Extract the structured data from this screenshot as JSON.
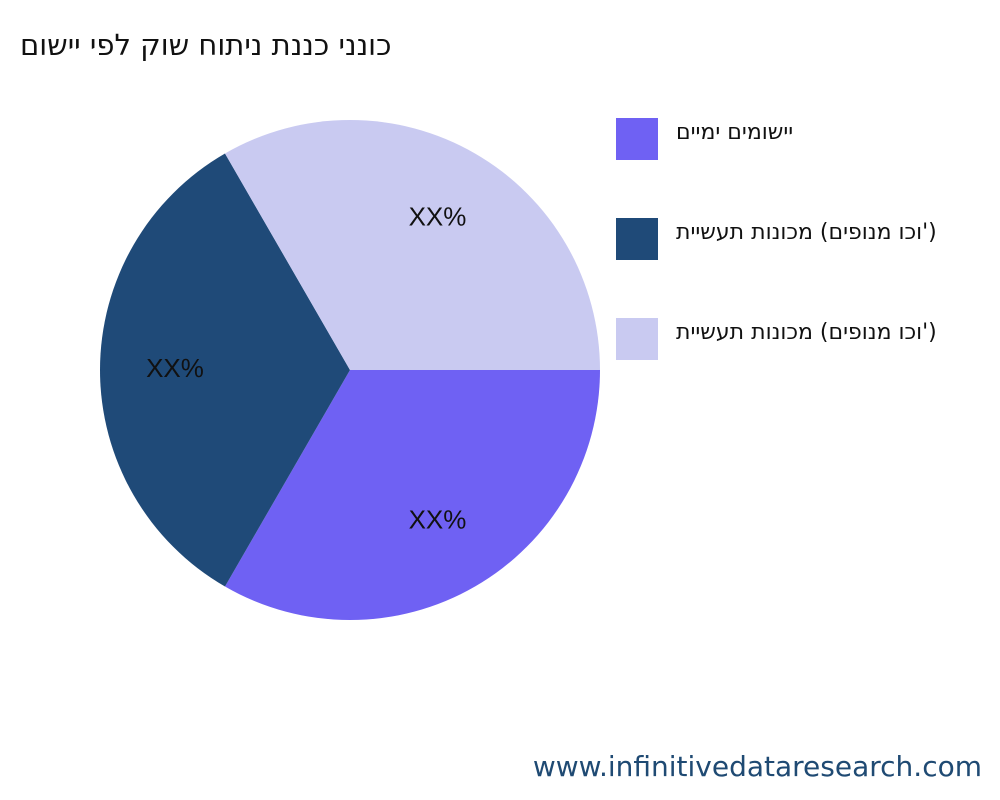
{
  "chart_data": {
    "type": "pie",
    "title": "םושיי יפל קוש חותינ תננכ יננוכ",
    "categories": [
      "םיימי םימושיי",
      "תיישעת תונוכמ (םיפונמ וכו')",
      "תיישעת תונוכמ (םיפונמ וכו')"
    ],
    "values": [
      33.3,
      33.3,
      33.3
    ],
    "value_labels": [
      "XX%",
      "XX%",
      "XX%"
    ],
    "colors": [
      "#6f61f3",
      "#1f4a78",
      "#c9caf1"
    ],
    "legend": "right"
  },
  "footer": "www.infinitivedataresearch.com"
}
